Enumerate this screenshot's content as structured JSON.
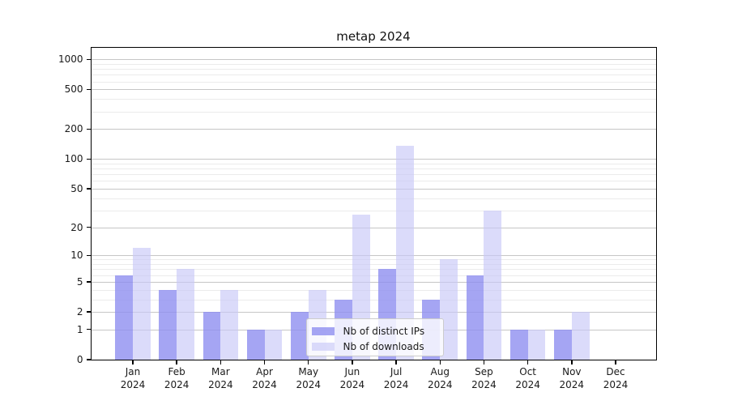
{
  "chart_data": {
    "type": "bar",
    "title": "metap 2024",
    "categories": [
      "Jan",
      "Feb",
      "Mar",
      "Apr",
      "May",
      "Jun",
      "Jul",
      "Aug",
      "Sep",
      "Oct",
      "Nov",
      "Dec"
    ],
    "category_year": "2024",
    "series": [
      {
        "name": "Nb of distinct IPs",
        "color": "rgba(140,140,240,0.78)",
        "values": [
          6,
          4,
          2,
          1,
          2,
          3,
          7,
          3,
          6,
          1,
          1,
          0
        ]
      },
      {
        "name": "Nb of downloads",
        "color": "rgba(200,200,247,0.65)",
        "values": [
          12,
          7,
          4,
          1,
          4,
          27,
          136,
          9,
          30,
          1,
          2,
          0
        ]
      }
    ],
    "yscale": "log1p",
    "yticks": [
      0,
      1,
      2,
      5,
      10,
      20,
      50,
      100,
      200,
      500,
      1000
    ],
    "yminorticks": [
      3,
      4,
      6,
      7,
      8,
      9,
      30,
      40,
      60,
      70,
      80,
      90,
      300,
      400,
      600,
      700,
      800,
      900
    ],
    "ylim": [
      0,
      1300
    ],
    "xlabel": "",
    "ylabel": "",
    "grid": true,
    "legend_position": "inside-lower-center",
    "colors": {
      "grid_major": "#c6c6c6",
      "grid_minor": "#ebebeb",
      "spine": "#000000",
      "text": "#1a1a1a"
    }
  }
}
